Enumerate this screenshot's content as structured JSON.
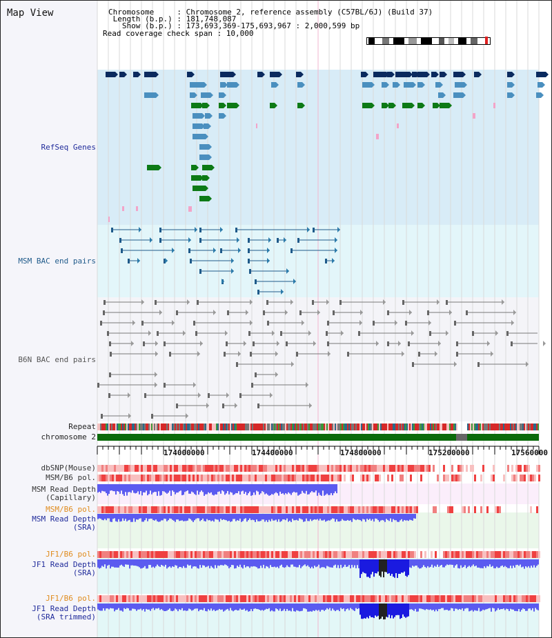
{
  "header": {
    "title": "Map View",
    "info_lines": [
      "Chromosome     : Chromosome 2, reference assembly (C57BL/6J) (Build 37)",
      " Length (b.p.) : 181,748,087",
      "   Show (b.p.) : 173,693,369-175,693,967 : 2,000,599 bp",
      "Read coverage check span : 10,000"
    ]
  },
  "tracks": {
    "refseq": {
      "label": "RefSeq Genes",
      "color": "#1f2a9a"
    },
    "msm_bac": {
      "label": "MSM BAC end pairs",
      "color": "#1f5a8a"
    },
    "b6n_bac": {
      "label": "B6N BAC end pairs",
      "color": "#555555"
    },
    "repeat": {
      "label": "Repeat"
    },
    "chromosome": {
      "label": "chromosome 2"
    },
    "dbsnp": {
      "label": "dbSNP(Mouse)",
      "color": "#333333"
    },
    "msm_b6_pol_1": {
      "label": "MSM/B6 pol.",
      "color": "#333333"
    },
    "msm_depth_cap": {
      "label": "MSM Read Depth\n(Capillary)",
      "color": "#333333"
    },
    "msm_b6_pol_2": {
      "label": "MSM/B6 pol.",
      "color": "#e08c1e"
    },
    "msm_depth_sra": {
      "label": "MSM Read Depth\n(SRA)",
      "color": "#1f2a9a"
    },
    "jf1_b6_pol_1": {
      "label": "JF1/B6 pol.",
      "color": "#e08c1e"
    },
    "jf1_depth_sra": {
      "label": "JF1 Read Depth\n(SRA)",
      "color": "#1f2a9a"
    },
    "jf1_b6_pol_2": {
      "label": "JF1/B6 pol.",
      "color": "#e08c1e"
    },
    "jf1_depth_trim": {
      "label": "JF1 Read Depth\n(SRA trimmed)",
      "color": "#1f2a9a"
    }
  },
  "axis": {
    "ticks": [
      "174000000",
      "174400000",
      "174800000",
      "175200000",
      "17560000"
    ]
  },
  "colors": {
    "gene_dark": "#0b2a5e",
    "gene_light": "#4a8fbf",
    "gene_green": "#0d7a16",
    "pink": "#f3a4c8",
    "chromosome_green": "#0b6b0b",
    "depth_blue": "#5b5bf0",
    "pol_red": "#f06a6a"
  }
}
